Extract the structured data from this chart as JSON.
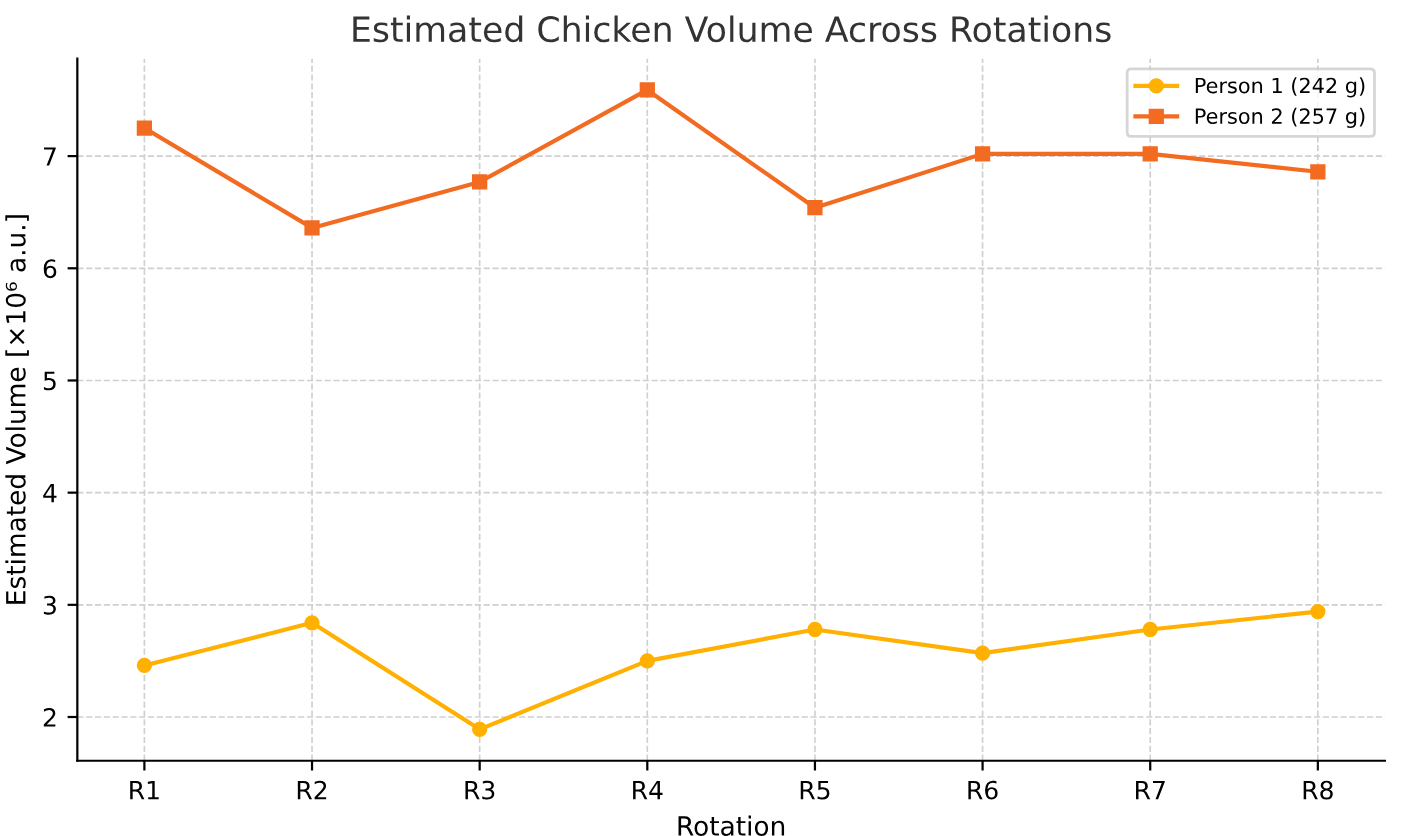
{
  "chart_data": {
    "type": "line",
    "title": "Estimated Chicken Volume Across Rotations",
    "xlabel": "Rotation",
    "ylabel": "Estimated Volume [×10⁶ a.u.]",
    "categories": [
      "R1",
      "R2",
      "R3",
      "R4",
      "R5",
      "R6",
      "R7",
      "R8"
    ],
    "series": [
      {
        "name": "Person 1 (242 g)",
        "color": "#ffb000",
        "marker": "circle",
        "values": [
          2.46,
          2.84,
          1.89,
          2.5,
          2.78,
          2.57,
          2.78,
          2.94
        ]
      },
      {
        "name": "Person 2 (257 g)",
        "color": "#f26b21",
        "marker": "square",
        "values": [
          7.25,
          6.36,
          6.77,
          7.59,
          6.54,
          7.02,
          7.02,
          6.86
        ]
      }
    ],
    "ylim": [
      1.61,
      7.87
    ],
    "yticks": [
      2,
      3,
      4,
      5,
      6,
      7
    ],
    "grid": true,
    "legend": "top right",
    "line_style": "solid"
  }
}
